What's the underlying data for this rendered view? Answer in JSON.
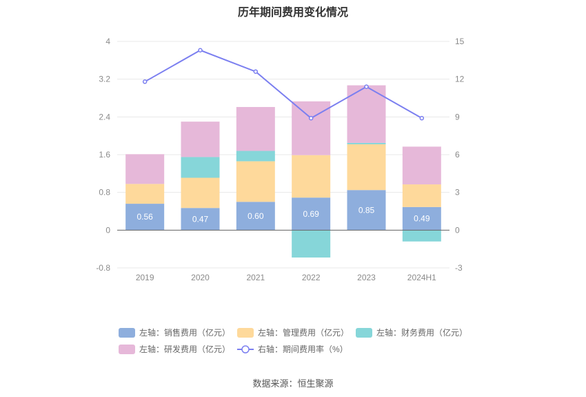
{
  "chart_data": {
    "type": "bar",
    "title": "历年期间费用变化情况",
    "categories": [
      "2019",
      "2020",
      "2021",
      "2022",
      "2023",
      "2024H1"
    ],
    "left_axis": {
      "ylim": [
        -0.8,
        4
      ],
      "ticks": [
        "-0.8",
        "0",
        "0.8",
        "1.6",
        "2.4",
        "3.2",
        "4"
      ],
      "tick_values": [
        -0.8,
        0,
        0.8,
        1.6,
        2.4,
        3.2,
        4
      ]
    },
    "right_axis": {
      "ylim": [
        -3,
        15
      ],
      "ticks": [
        "-3",
        "0",
        "3",
        "6",
        "9",
        "12",
        "15"
      ],
      "tick_values": [
        -3,
        0,
        3,
        6,
        9,
        12,
        15
      ]
    },
    "grid": true,
    "legend_position": "bottom",
    "series": [
      {
        "name": "左轴：销售费用（亿元）",
        "type": "bar",
        "axis": "left",
        "color": "#8eaedd",
        "values": [
          0.56,
          0.47,
          0.6,
          0.69,
          0.85,
          0.49
        ],
        "labels": [
          "0.56",
          "0.47",
          "0.60",
          "0.69",
          "0.85",
          "0.49"
        ]
      },
      {
        "name": "左轴：管理费用（亿元）",
        "type": "bar",
        "axis": "left",
        "color": "#fed99b",
        "values": [
          0.42,
          0.64,
          0.86,
          0.9,
          0.97,
          0.48
        ]
      },
      {
        "name": "左轴：财务费用（亿元）",
        "type": "bar",
        "axis": "left",
        "color": "#86d6d9",
        "values": [
          0.0,
          0.44,
          0.22,
          -0.58,
          0.03,
          -0.24
        ]
      },
      {
        "name": "左轴：研发费用（亿元）",
        "type": "bar",
        "axis": "left",
        "color": "#e6b8d9",
        "values": [
          0.63,
          0.75,
          0.93,
          1.14,
          1.22,
          0.8
        ]
      },
      {
        "name": "右轴：期间费用率（%）",
        "type": "line",
        "axis": "right",
        "color": "#7b7ff0",
        "values": [
          11.8,
          14.3,
          12.6,
          8.9,
          11.4,
          8.9
        ]
      }
    ]
  },
  "source": "数据来源：恒生聚源"
}
